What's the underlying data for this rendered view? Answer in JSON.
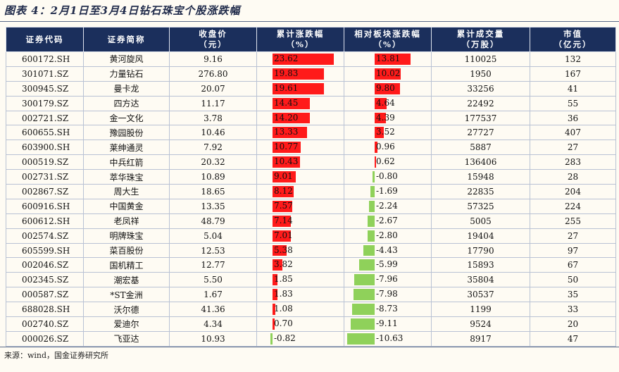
{
  "title": "图表 4：2月1日至3月4日钻石珠宝个股涨跌幅",
  "headers": [
    [
      "证券代码",
      ""
    ],
    [
      "证券简称",
      ""
    ],
    [
      "收盘价",
      "（元）"
    ],
    [
      "累计涨跌幅",
      "（%）"
    ],
    [
      "相对板块涨跌幅",
      "（%）"
    ],
    [
      "累计成交量",
      "（万股）"
    ],
    [
      "市值",
      "（亿元）"
    ]
  ],
  "rows": [
    {
      "code": "600172.SH",
      "name": "黄河旋风",
      "close": "9.16",
      "cum": "23.62",
      "rel": "13.81",
      "vol": "110025",
      "cap": "132"
    },
    {
      "code": "301071.SZ",
      "name": "力量钻石",
      "close": "276.80",
      "cum": "19.83",
      "rel": "10.02",
      "vol": "1950",
      "cap": "167"
    },
    {
      "code": "300945.SZ",
      "name": "曼卡龙",
      "close": "20.07",
      "cum": "19.61",
      "rel": "9.80",
      "vol": "33256",
      "cap": "41"
    },
    {
      "code": "300179.SZ",
      "name": "四方达",
      "close": "11.17",
      "cum": "14.45",
      "rel": "4.64",
      "vol": "22492",
      "cap": "55"
    },
    {
      "code": "002721.SZ",
      "name": "金一文化",
      "close": "3.78",
      "cum": "14.20",
      "rel": "4.39",
      "vol": "177537",
      "cap": "36"
    },
    {
      "code": "600655.SH",
      "name": "豫园股份",
      "close": "10.46",
      "cum": "13.33",
      "rel": "3.52",
      "vol": "27727",
      "cap": "407"
    },
    {
      "code": "603900.SH",
      "name": "莱绅通灵",
      "close": "7.92",
      "cum": "10.77",
      "rel": "0.96",
      "vol": "5887",
      "cap": "27"
    },
    {
      "code": "000519.SZ",
      "name": "中兵红箭",
      "close": "20.32",
      "cum": "10.43",
      "rel": "0.62",
      "vol": "136406",
      "cap": "283"
    },
    {
      "code": "002731.SZ",
      "name": "萃华珠宝",
      "close": "10.89",
      "cum": "9.01",
      "rel": "-0.80",
      "vol": "15948",
      "cap": "28"
    },
    {
      "code": "002867.SZ",
      "name": "周大生",
      "close": "18.65",
      "cum": "8.12",
      "rel": "-1.69",
      "vol": "22835",
      "cap": "204"
    },
    {
      "code": "600916.SH",
      "name": "中国黄金",
      "close": "13.35",
      "cum": "7.57",
      "rel": "-2.24",
      "vol": "57325",
      "cap": "224"
    },
    {
      "code": "600612.SH",
      "name": "老凤祥",
      "close": "48.79",
      "cum": "7.14",
      "rel": "-2.67",
      "vol": "5005",
      "cap": "255"
    },
    {
      "code": "002574.SZ",
      "name": "明牌珠宝",
      "close": "5.04",
      "cum": "7.01",
      "rel": "-2.80",
      "vol": "19404",
      "cap": "27"
    },
    {
      "code": "605599.SH",
      "name": "菜百股份",
      "close": "12.53",
      "cum": "5.38",
      "rel": "-4.43",
      "vol": "17790",
      "cap": "97"
    },
    {
      "code": "002046.SZ",
      "name": "国机精工",
      "close": "12.77",
      "cum": "3.82",
      "rel": "-5.99",
      "vol": "15893",
      "cap": "67"
    },
    {
      "code": "002345.SZ",
      "name": "潮宏基",
      "close": "5.50",
      "cum": "1.85",
      "rel": "-7.96",
      "vol": "35804",
      "cap": "50"
    },
    {
      "code": "000587.SZ",
      "name": "*ST金洲",
      "close": "1.67",
      "cum": "1.83",
      "rel": "-7.98",
      "vol": "30537",
      "cap": "35"
    },
    {
      "code": "688028.SH",
      "name": "沃尔德",
      "close": "41.36",
      "cum": "1.08",
      "rel": "-8.73",
      "vol": "1199",
      "cap": "33"
    },
    {
      "code": "002740.SZ",
      "name": "爱迪尔",
      "close": "4.34",
      "cum": "0.70",
      "rel": "-9.11",
      "vol": "9524",
      "cap": "20"
    },
    {
      "code": "000026.SZ",
      "name": "飞亚达",
      "close": "10.93",
      "cum": "-0.82",
      "rel": "-10.63",
      "vol": "8917",
      "cap": "47"
    }
  ],
  "colors": {
    "header_bg": "#1b2f5c",
    "positive_bar": "#ff1a1a",
    "negative_bar": "#8fd15a"
  },
  "source": "来源：wind，国金证券研究所"
}
